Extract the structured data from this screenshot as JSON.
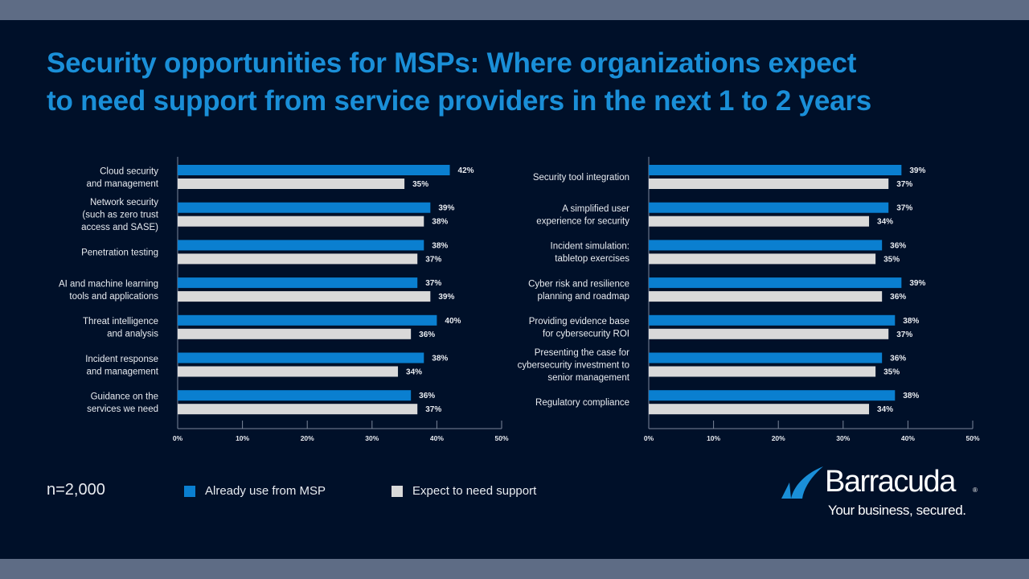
{
  "title_lines": [
    "Security opportunities for MSPs: Where organizations expect",
    "to need support from service providers in the next 1 to 2 years"
  ],
  "sample_size": "n=2,000",
  "legend": [
    {
      "label": "Already use from MSP",
      "color": "#0a7fd0"
    },
    {
      "label": "Expect to need support",
      "color": "#d9d9d9"
    }
  ],
  "brand": {
    "name": "Barracuda",
    "registered": "®",
    "tagline": "Your business, secured.",
    "accent": "#1a8fd8"
  },
  "colors": {
    "background": "#001029",
    "frame": "#5e6c85",
    "title": "#1a8fd8",
    "series_msp": "#0a7fd0",
    "series_expect": "#d9d9d9",
    "axis": "#7b869a"
  },
  "chart_data": [
    {
      "type": "bar",
      "orientation": "horizontal",
      "title": "",
      "xlabel": "",
      "ylabel": "",
      "xlim": [
        0,
        50
      ],
      "x_ticks": [
        "0%",
        "10%",
        "20%",
        "30%",
        "40%",
        "50%"
      ],
      "grid": false,
      "legend_position": "bottom-left",
      "categories": [
        [
          "Cloud security",
          "and management"
        ],
        [
          "Network security",
          "(such as zero trust",
          "access and SASE)"
        ],
        [
          "Penetration testing"
        ],
        [
          "AI and machine learning",
          "tools and applications"
        ],
        [
          "Threat intelligence",
          "and analysis"
        ],
        [
          "Incident response",
          "and management"
        ],
        [
          "Guidance on the",
          "services we need"
        ]
      ],
      "series": [
        {
          "name": "Already use from MSP",
          "values": [
            42,
            39,
            38,
            37,
            40,
            38,
            36
          ]
        },
        {
          "name": "Expect to need support",
          "values": [
            35,
            38,
            37,
            39,
            36,
            34,
            37
          ]
        }
      ]
    },
    {
      "type": "bar",
      "orientation": "horizontal",
      "title": "",
      "xlabel": "",
      "ylabel": "",
      "xlim": [
        0,
        50
      ],
      "x_ticks": [
        "0%",
        "10%",
        "20%",
        "30%",
        "40%",
        "50%"
      ],
      "grid": false,
      "legend_position": "bottom-left",
      "categories": [
        [
          "Security tool integration"
        ],
        [
          "A simplified user",
          "experience for security"
        ],
        [
          "Incident simulation:",
          "tabletop exercises"
        ],
        [
          "Cyber risk and resilience",
          "planning and roadmap"
        ],
        [
          "Providing evidence base",
          "for cybersecurity ROI"
        ],
        [
          "Presenting the case for",
          "cybersecurity investment to",
          "senior management"
        ],
        [
          "Regulatory compliance"
        ]
      ],
      "series": [
        {
          "name": "Already use from MSP",
          "values": [
            39,
            37,
            36,
            39,
            38,
            36,
            38
          ]
        },
        {
          "name": "Expect to need support",
          "values": [
            37,
            34,
            35,
            36,
            37,
            35,
            34
          ]
        }
      ]
    }
  ]
}
